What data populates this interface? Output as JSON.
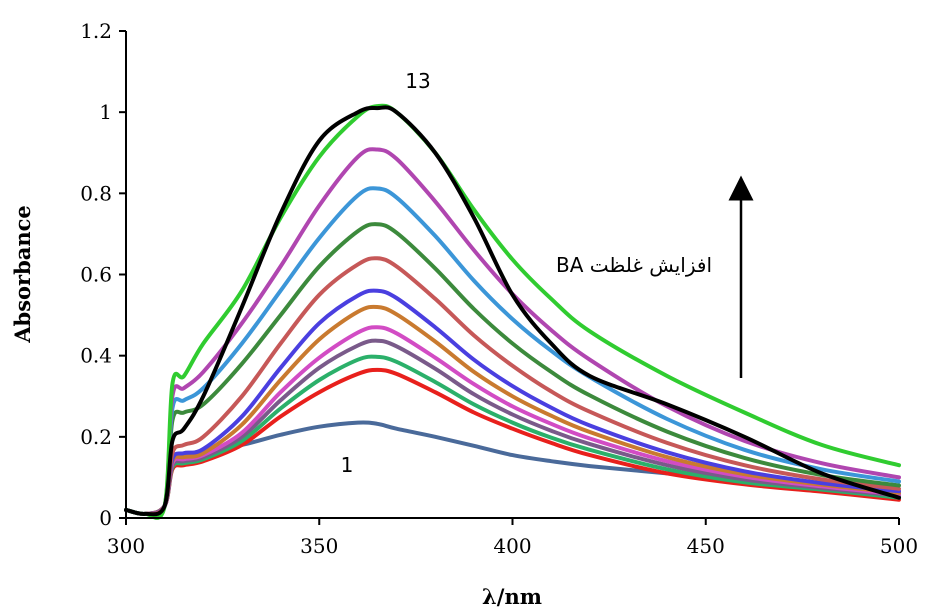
{
  "chart_data": {
    "type": "line",
    "title": "",
    "xlabel": "λ/nm",
    "ylabel": "Absorbance",
    "xlim": [
      300,
      500
    ],
    "ylim": [
      0,
      1.2
    ],
    "xticks": [
      300,
      350,
      400,
      450,
      500
    ],
    "yticks": [
      0,
      0.2,
      0.4,
      0.6,
      0.8,
      1,
      1.2
    ],
    "xtick_labels": [
      "300",
      "350",
      "400",
      "450",
      "500"
    ],
    "ytick_labels": [
      "0",
      "0.2",
      "0.4",
      "0.6",
      "0.8",
      "1",
      "1.2"
    ],
    "grid": false,
    "legend": "none",
    "annotations": {
      "first_curve_label": "1",
      "last_curve_label": "13",
      "arrow_text": "افزایش غلظت BA",
      "arrow_direction": "up"
    },
    "x": [
      300,
      305,
      310,
      312,
      315,
      320,
      330,
      340,
      350,
      360,
      365,
      370,
      380,
      390,
      400,
      410,
      420,
      440,
      460,
      480,
      500
    ],
    "series": [
      {
        "color": "#4a6a9a",
        "values": [
          0.02,
          0.01,
          0.03,
          0.14,
          0.155,
          0.165,
          0.18,
          0.205,
          0.225,
          0.235,
          0.232,
          0.22,
          0.2,
          0.178,
          0.155,
          0.14,
          0.128,
          0.11,
          0.092,
          0.075,
          0.06
        ]
      },
      {
        "color": "#e8201c",
        "values": [
          0.02,
          0.01,
          0.03,
          0.12,
          0.13,
          0.14,
          0.18,
          0.25,
          0.31,
          0.355,
          0.365,
          0.355,
          0.31,
          0.26,
          0.22,
          0.185,
          0.155,
          0.11,
          0.083,
          0.065,
          0.045
        ]
      },
      {
        "color": "#2bb06a",
        "values": [
          0.02,
          0.01,
          0.03,
          0.125,
          0.135,
          0.145,
          0.19,
          0.27,
          0.34,
          0.39,
          0.397,
          0.385,
          0.335,
          0.28,
          0.235,
          0.198,
          0.168,
          0.12,
          0.088,
          0.07,
          0.05
        ]
      },
      {
        "color": "#7a5a8a",
        "values": [
          0.02,
          0.01,
          0.03,
          0.13,
          0.14,
          0.15,
          0.2,
          0.29,
          0.37,
          0.425,
          0.437,
          0.423,
          0.368,
          0.305,
          0.255,
          0.215,
          0.182,
          0.13,
          0.095,
          0.074,
          0.055
        ]
      },
      {
        "color": "#d24cc4",
        "values": [
          0.02,
          0.01,
          0.03,
          0.135,
          0.145,
          0.155,
          0.21,
          0.31,
          0.395,
          0.457,
          0.47,
          0.455,
          0.395,
          0.33,
          0.275,
          0.232,
          0.196,
          0.14,
          0.102,
          0.078,
          0.058
        ]
      },
      {
        "color": "#c97a2f",
        "values": [
          0.02,
          0.01,
          0.03,
          0.14,
          0.15,
          0.16,
          0.23,
          0.34,
          0.44,
          0.508,
          0.52,
          0.502,
          0.435,
          0.36,
          0.3,
          0.252,
          0.212,
          0.15,
          0.108,
          0.082,
          0.062
        ]
      },
      {
        "color": "#4a3fe0",
        "values": [
          0.02,
          0.01,
          0.03,
          0.145,
          0.16,
          0.17,
          0.25,
          0.37,
          0.48,
          0.548,
          0.56,
          0.542,
          0.47,
          0.39,
          0.325,
          0.272,
          0.228,
          0.162,
          0.115,
          0.086,
          0.066
        ]
      },
      {
        "color": "#c65858",
        "values": [
          0.02,
          0.01,
          0.03,
          0.16,
          0.18,
          0.2,
          0.3,
          0.43,
          0.55,
          0.625,
          0.64,
          0.62,
          0.54,
          0.45,
          0.375,
          0.312,
          0.262,
          0.185,
          0.13,
          0.095,
          0.072
        ]
      },
      {
        "color": "#3c8a3c",
        "values": [
          0.02,
          0.01,
          0.03,
          0.24,
          0.26,
          0.28,
          0.38,
          0.5,
          0.62,
          0.707,
          0.724,
          0.703,
          0.615,
          0.515,
          0.43,
          0.36,
          0.302,
          0.213,
          0.148,
          0.106,
          0.08
        ]
      },
      {
        "color": "#3c96d8",
        "values": [
          0.02,
          0.01,
          0.03,
          0.27,
          0.29,
          0.32,
          0.43,
          0.56,
          0.69,
          0.795,
          0.812,
          0.79,
          0.695,
          0.585,
          0.49,
          0.412,
          0.347,
          0.244,
          0.168,
          0.12,
          0.09
        ]
      },
      {
        "color": "#b046b0",
        "values": [
          0.02,
          0.01,
          0.03,
          0.3,
          0.32,
          0.36,
          0.48,
          0.62,
          0.77,
          0.89,
          0.908,
          0.885,
          0.78,
          0.66,
          0.552,
          0.463,
          0.39,
          0.275,
          0.19,
          0.135,
          0.1
        ]
      },
      {
        "color": "#30cc30",
        "values": [
          0.02,
          0.01,
          0.03,
          0.33,
          0.35,
          0.43,
          0.56,
          0.74,
          0.89,
          0.99,
          1.015,
          1.0,
          0.9,
          0.76,
          0.637,
          0.54,
          0.46,
          0.35,
          0.26,
          0.18,
          0.13
        ]
      },
      {
        "color": "#000000",
        "values": [
          0.02,
          0.01,
          0.03,
          0.19,
          0.22,
          0.3,
          0.52,
          0.75,
          0.93,
          1.0,
          1.01,
          1.0,
          0.9,
          0.74,
          0.55,
          0.43,
          0.35,
          0.28,
          0.2,
          0.11,
          0.05
        ]
      }
    ]
  }
}
